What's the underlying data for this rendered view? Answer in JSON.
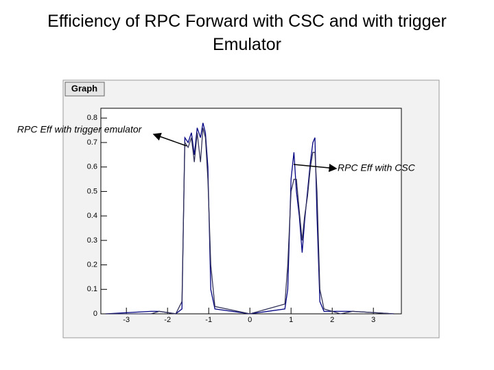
{
  "title": "Efficiency of RPC Forward with CSC and with trigger Emulator",
  "chart_data": {
    "type": "line",
    "frame_title": "Graph",
    "x": [
      -3.5,
      -2.4,
      -2.2,
      -1.8,
      -1.65,
      -1.58,
      -1.5,
      -1.42,
      -1.35,
      -1.28,
      -1.2,
      -1.14,
      -1.08,
      -1.02,
      -0.95,
      -0.85,
      0,
      0.85,
      0.92,
      1.0,
      1.07,
      1.13,
      1.2,
      1.27,
      1.33,
      1.4,
      1.47,
      1.53,
      1.58,
      1.63,
      1.7,
      1.8,
      2.2,
      2.5,
      3.5
    ],
    "series": [
      {
        "name": "RPC Eff with CSC",
        "color": "#000080",
        "values": [
          0,
          0.01,
          0.01,
          0,
          0.02,
          0.72,
          0.7,
          0.74,
          0.65,
          0.76,
          0.72,
          0.78,
          0.74,
          0.6,
          0.1,
          0.02,
          0,
          0.02,
          0.1,
          0.55,
          0.66,
          0.5,
          0.4,
          0.25,
          0.38,
          0.5,
          0.62,
          0.7,
          0.72,
          0.4,
          0.05,
          0.01,
          0.01,
          0.01,
          0
        ]
      },
      {
        "name": "RPC Eff with trigger emulator",
        "color": "#33335a",
        "values": [
          0,
          0,
          0.01,
          0,
          0.05,
          0.7,
          0.68,
          0.72,
          0.62,
          0.74,
          0.62,
          0.76,
          0.72,
          0.55,
          0.2,
          0.03,
          0,
          0.04,
          0.2,
          0.5,
          0.55,
          0.55,
          0.42,
          0.3,
          0.4,
          0.48,
          0.6,
          0.66,
          0.66,
          0.5,
          0.1,
          0.02,
          0,
          0.01,
          0
        ]
      }
    ],
    "xlim": [
      -3.62,
      3.68
    ],
    "xticks": [
      -3,
      -2,
      -1,
      0,
      1,
      2,
      3
    ],
    "ylim": [
      0,
      0.84
    ],
    "yticks": [
      0,
      0.1,
      0.2,
      0.3,
      0.4,
      0.5,
      0.6,
      0.7,
      0.8
    ]
  }
}
